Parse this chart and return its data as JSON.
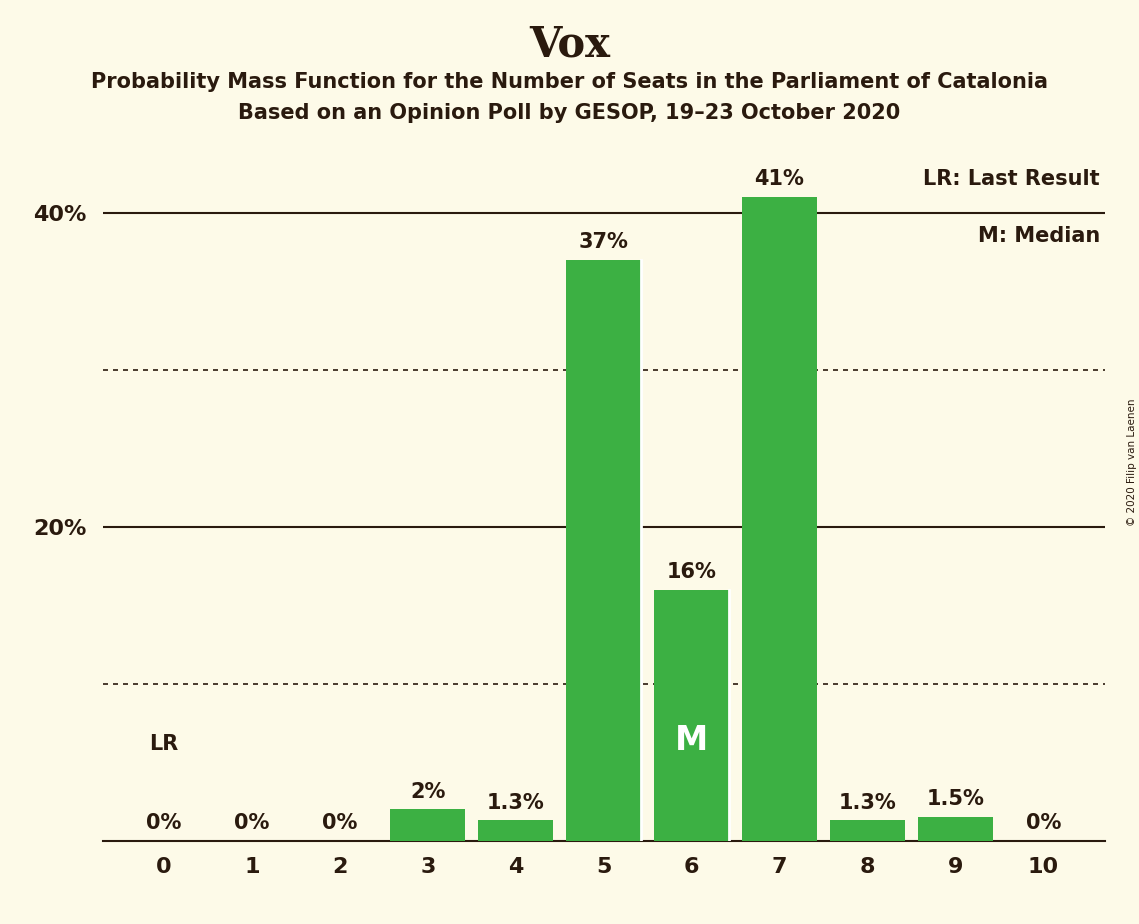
{
  "title": "Vox",
  "subtitle1": "Probability Mass Function for the Number of Seats in the Parliament of Catalonia",
  "subtitle2": "Based on an Opinion Poll by GESOP, 19–23 October 2020",
  "copyright": "© 2020 Filip van Laenen",
  "categories": [
    0,
    1,
    2,
    3,
    4,
    5,
    6,
    7,
    8,
    9,
    10
  ],
  "values": [
    0.0,
    0.0,
    0.0,
    2.0,
    1.3,
    37.0,
    16.0,
    41.0,
    1.3,
    1.5,
    0.0
  ],
  "labels": [
    "0%",
    "0%",
    "0%",
    "2%",
    "1.3%",
    "37%",
    "16%",
    "41%",
    "1.3%",
    "1.5%",
    "0%"
  ],
  "bar_color": "#3cb043",
  "background_color": "#fdfae8",
  "ylim": [
    0,
    45
  ],
  "dotted_grid_values": [
    10,
    30
  ],
  "solid_grid_values": [
    20,
    40
  ],
  "grid_color": "#2a1a0e",
  "median_seat_idx": 6,
  "last_result_seat_idx": 0,
  "lr_label": "LR",
  "median_label": "M",
  "legend_lr": "LR: Last Result",
  "legend_m": "M: Median",
  "title_fontsize": 30,
  "subtitle_fontsize": 15,
  "label_fontsize": 15,
  "tick_fontsize": 16,
  "ytick_labels": [
    "20%",
    "40%"
  ],
  "ytick_values": [
    20,
    40
  ],
  "text_color": "#2a1a0e"
}
